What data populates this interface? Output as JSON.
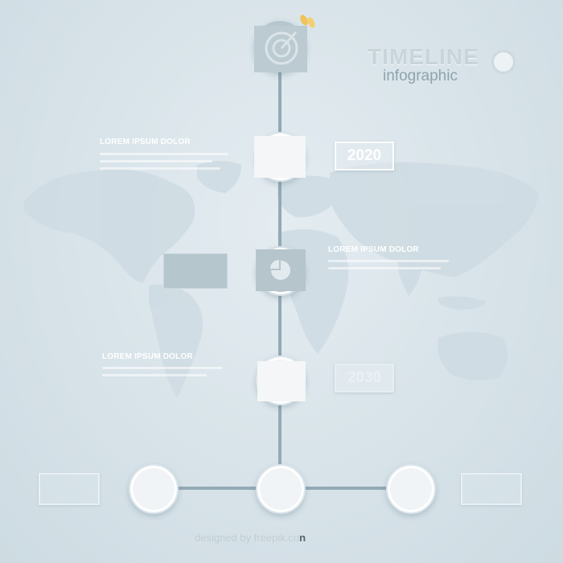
{
  "title": {
    "word": "TIMELINE",
    "sub": "infographic"
  },
  "labels": [
    "LOREM IPSUM DOLOR",
    "LOREM IPSUM DOLOR",
    "LOREM IPSUM DOLOR"
  ],
  "years": [
    "2020",
    "2030"
  ],
  "footer": {
    "text": "designed by freepik.co",
    "end": "n"
  },
  "icons": [
    "target-icon",
    "pie-chart-icon",
    "world-map"
  ],
  "colors": {
    "background": "#dbe5eb",
    "line": "#93aab4",
    "node": "#f1f4f6",
    "accent_grey": "#b6c5cc",
    "badge_accent": "#f0c25a"
  }
}
